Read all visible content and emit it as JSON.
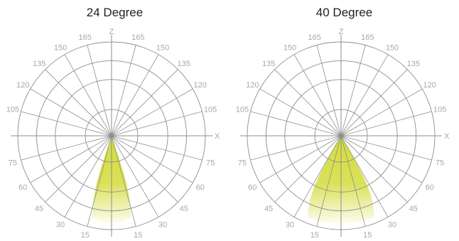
{
  "chart_data": [
    {
      "type": "polar",
      "title": "24 Degree",
      "beam_angle_deg": 24,
      "axis_labels": {
        "vertical": "Z",
        "horizontal": "X"
      },
      "angle_tick_labels": [
        "165",
        "150",
        "135",
        "120",
        "105",
        "75",
        "60",
        "45",
        "30",
        "15"
      ],
      "rings": 4,
      "grid": true,
      "beam_color": "#d4dc3c"
    },
    {
      "type": "polar",
      "title": "40 Degree",
      "beam_angle_deg": 40,
      "axis_labels": {
        "vertical": "Z",
        "horizontal": "X"
      },
      "angle_tick_labels": [
        "165",
        "150",
        "135",
        "120",
        "105",
        "75",
        "60",
        "45",
        "30",
        "15"
      ],
      "rings": 4,
      "grid": true,
      "beam_color": "#d4dc3c"
    }
  ]
}
